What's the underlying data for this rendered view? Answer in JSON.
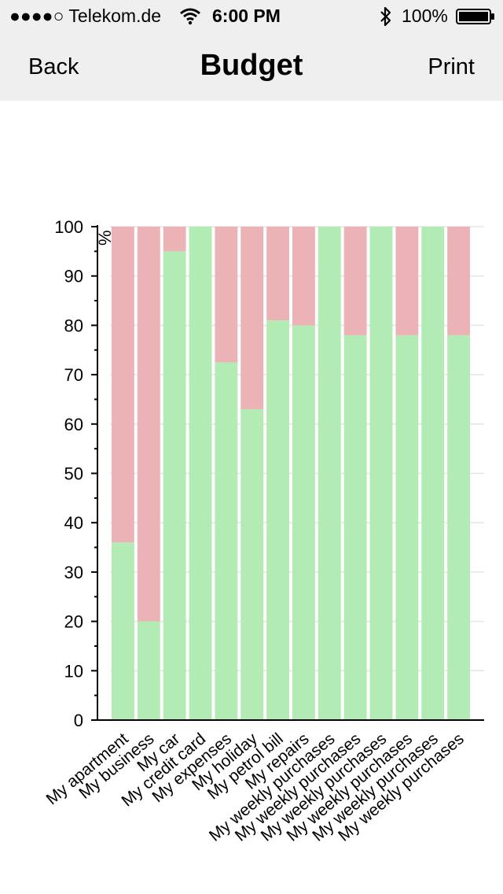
{
  "status_bar": {
    "carrier": "●●●●○ Telekom.de",
    "time": "6:00 PM",
    "battery": "100%",
    "icons": [
      "signal-dots-icon",
      "wifi-icon",
      "bluetooth-icon",
      "battery-icon"
    ]
  },
  "nav": {
    "back_label": "Back",
    "title": "Budget",
    "print_label": "Print"
  },
  "chart_data": {
    "type": "bar",
    "stacked": true,
    "unit_label": "%",
    "ylim": [
      0,
      100
    ],
    "yticks": [
      0,
      10,
      20,
      30,
      40,
      50,
      60,
      70,
      80,
      90,
      100
    ],
    "grid": true,
    "categories": [
      "My apartment",
      "My business",
      "My car",
      "My credit card",
      "My expenses",
      "My holiday",
      "My petrol bill",
      "My repairs",
      "My weekly purchases",
      "My weekly purchases",
      "My weekly purchases",
      "My weekly purchases",
      "My weekly purchases",
      "My weekly purchases"
    ],
    "series": [
      {
        "values": [
          36,
          20,
          95,
          100,
          72.5,
          63,
          81,
          80,
          100,
          78,
          100,
          78,
          100,
          78
        ],
        "color": "#b3ebb5"
      },
      {
        "values": [
          64,
          80,
          5,
          0,
          27.5,
          37,
          19,
          20,
          0,
          22,
          0,
          22,
          0,
          22
        ],
        "color": "#ebb3b5"
      }
    ]
  }
}
